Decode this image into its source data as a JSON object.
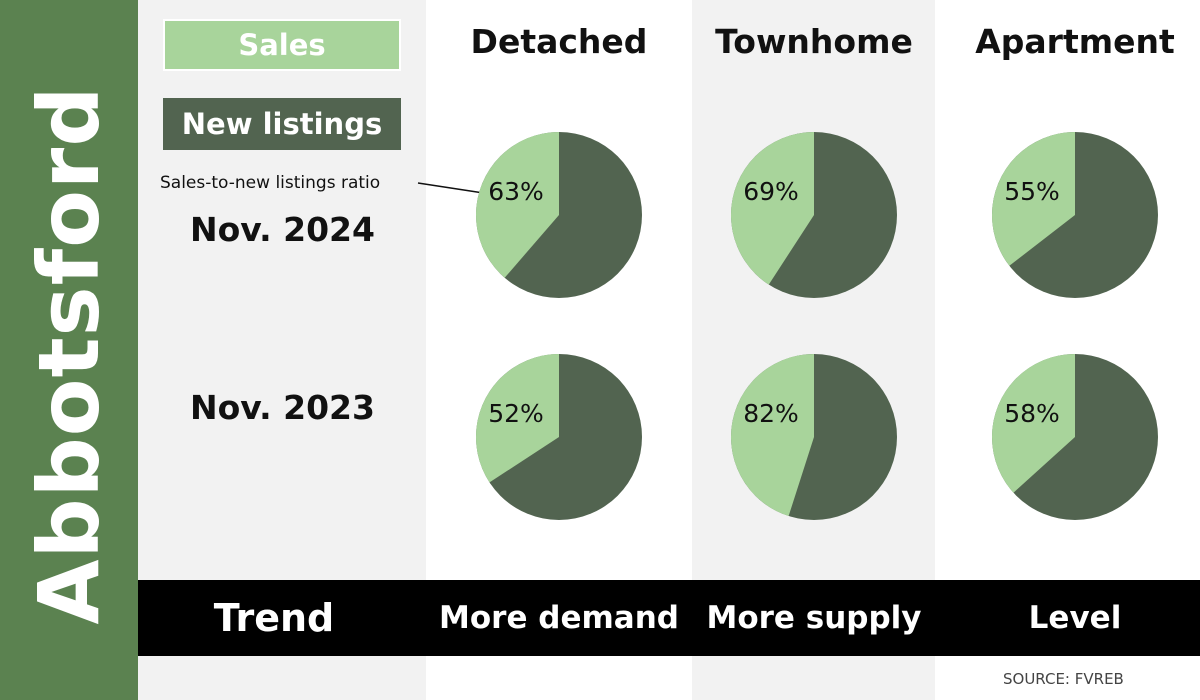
{
  "side_title": "Abbotsford",
  "legend": {
    "sales": "Sales",
    "new_listings": "New listings"
  },
  "ratio_label": "Sales-to-new listings ratio",
  "rows": [
    "Nov. 2024",
    "Nov. 2023"
  ],
  "columns": [
    "Detached",
    "Townhome",
    "Apartment"
  ],
  "trend": {
    "label": "Trend",
    "values": [
      "More demand",
      "More supply",
      "Level"
    ]
  },
  "source": "SOURCE: FVREB",
  "colors": {
    "sales": "#a8d49b",
    "new_listings": "#526450",
    "side_band": "#5b8250",
    "trend_bar": "#000000"
  },
  "chart_data": {
    "type": "pie",
    "series_names": [
      "Sales",
      "New listings"
    ],
    "categories": [
      "Detached",
      "Townhome",
      "Apartment"
    ],
    "periods": [
      "Nov. 2024",
      "Nov. 2023"
    ],
    "ratios": [
      [
        63,
        69,
        55
      ],
      [
        52,
        82,
        58
      ]
    ],
    "labels": [
      [
        "63%",
        "69%",
        "55%"
      ],
      [
        "52%",
        "82%",
        "58%"
      ]
    ]
  }
}
